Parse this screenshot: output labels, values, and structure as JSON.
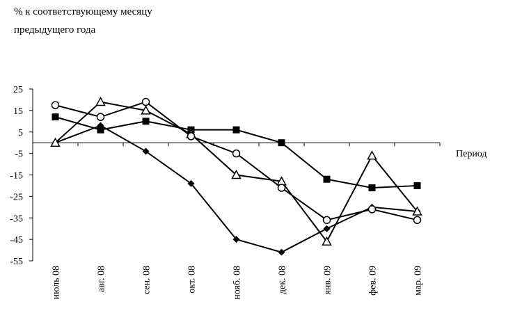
{
  "chart_data": {
    "type": "line",
    "title": [
      "% к соответствующему месяцу",
      "предыдущего года"
    ],
    "x_label": "Период",
    "categories": [
      "июль 08",
      "авг. 08",
      "сен. 08",
      "окт. 08",
      "нояб. 08",
      "дек. 08",
      "янв. 09",
      "фев. 09",
      "мар. 09"
    ],
    "series": [
      {
        "color": "#000000",
        "marker": "diamond",
        "values": [
          0,
          8,
          -4,
          -19,
          -45,
          -51,
          -40,
          -30,
          -32
        ]
      },
      {
        "color": "#000000",
        "marker": "square",
        "values": [
          12,
          6,
          10,
          6,
          6,
          0,
          -17,
          -21,
          -20
        ]
      },
      {
        "color": "#000000",
        "marker": "triangle",
        "values": [
          0,
          19,
          15,
          4,
          -15,
          -18,
          -46,
          -6,
          -32
        ]
      },
      {
        "color": "#000000",
        "marker": "circle",
        "values": [
          17.5,
          12,
          19,
          3,
          -5,
          -21,
          -36,
          -31,
          -36
        ]
      }
    ],
    "ylim": [
      -55,
      25
    ],
    "yticks": [
      25,
      15,
      5,
      -5,
      -15,
      -25,
      -35,
      -45,
      -55
    ],
    "grid": false
  }
}
